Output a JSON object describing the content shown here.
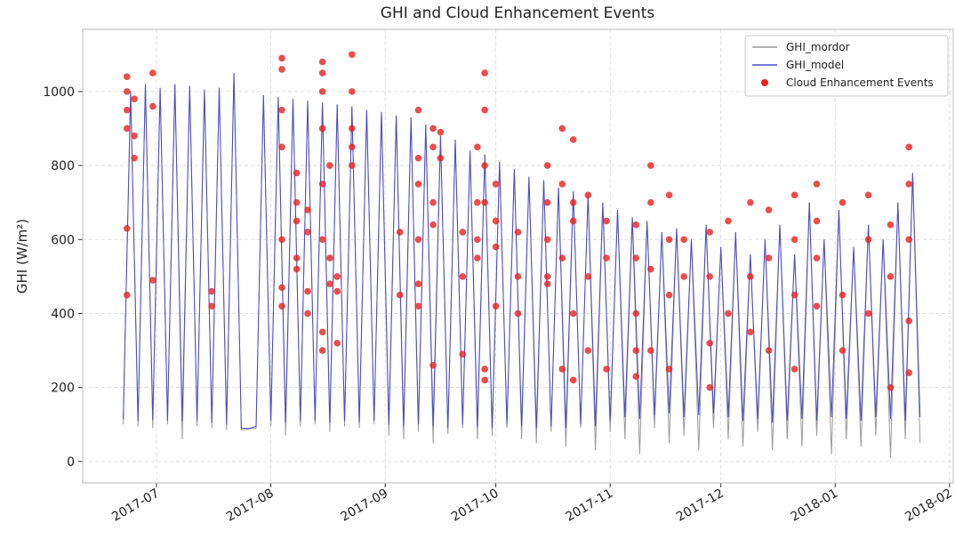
{
  "chart_data": {
    "type": "line",
    "title": "GHI and Cloud Enhancement Events",
    "ylabel": "GHI (W/m²)",
    "xlim": [
      -20,
      216
    ],
    "xticks": [
      {
        "value": 0,
        "label": "2017-07"
      },
      {
        "value": 31,
        "label": "2017-08"
      },
      {
        "value": 62,
        "label": "2017-09"
      },
      {
        "value": 92,
        "label": "2017-10"
      },
      {
        "value": 123,
        "label": "2017-11"
      },
      {
        "value": 153,
        "label": "2017-12"
      },
      {
        "value": 184,
        "label": "2018-01"
      },
      {
        "value": 215,
        "label": "2018-02"
      }
    ],
    "ylim": [
      -58,
      1168
    ],
    "yticks": [
      0,
      200,
      400,
      600,
      800,
      1000
    ],
    "grid": true,
    "legend": "upper right",
    "series": [
      {
        "name": "GHI_mordor",
        "type": "line",
        "color": "#999999",
        "x": [
          -9,
          -7,
          -5,
          -3,
          -1,
          1,
          3,
          5,
          7,
          9,
          11,
          13,
          15,
          17,
          19,
          21,
          23,
          25,
          27,
          29,
          31,
          33,
          35,
          37,
          39,
          41,
          43,
          45,
          47,
          49,
          51,
          53,
          55,
          57,
          59,
          61,
          63,
          65,
          67,
          69,
          71,
          73,
          75,
          77,
          79,
          81,
          83,
          85,
          87,
          89,
          91,
          93,
          95,
          97,
          99,
          101,
          103,
          105,
          107,
          109,
          111,
          113,
          115,
          117,
          119,
          121,
          123,
          125,
          127,
          129,
          131,
          133,
          135,
          137,
          139,
          141,
          143,
          145,
          147,
          149,
          151,
          153,
          155,
          157,
          159,
          161,
          163,
          165,
          167,
          169,
          171,
          173,
          175,
          177,
          179,
          181,
          183,
          185,
          187,
          189,
          191,
          193,
          195,
          197,
          199,
          201,
          203,
          205,
          207
        ],
        "values": [
          100,
          1000,
          95,
          1020,
          90,
          1010,
          100,
          1020,
          60,
          1015,
          95,
          1005,
          90,
          1010,
          85,
          1050,
          85,
          88,
          90,
          990,
          95,
          985,
          70,
          980,
          95,
          975,
          100,
          970,
          80,
          965,
          95,
          960,
          90,
          950,
          100,
          945,
          70,
          935,
          60,
          930,
          80,
          910,
          50,
          880,
          75,
          870,
          90,
          840,
          60,
          830,
          70,
          810,
          90,
          790,
          60,
          770,
          50,
          760,
          80,
          740,
          40,
          730,
          90,
          720,
          30,
          700,
          80,
          680,
          60,
          660,
          20,
          650,
          90,
          620,
          50,
          630,
          70,
          600,
          30,
          640,
          90,
          580,
          60,
          620,
          40,
          560,
          80,
          600,
          30,
          640,
          60,
          560,
          40,
          700,
          70,
          600,
          20,
          680,
          60,
          580,
          40,
          640,
          70,
          600,
          10,
          700,
          60,
          780,
          50
        ]
      },
      {
        "name": "GHI_model",
        "type": "line",
        "color": "#4a4acc",
        "x": [
          -9,
          -7,
          -5,
          -3,
          -1,
          1,
          3,
          5,
          7,
          9,
          11,
          13,
          15,
          17,
          19,
          21,
          23,
          25,
          27,
          29,
          31,
          33,
          35,
          37,
          39,
          41,
          43,
          45,
          47,
          49,
          51,
          53,
          55,
          57,
          59,
          61,
          63,
          65,
          67,
          69,
          71,
          73,
          75,
          77,
          79,
          81,
          83,
          85,
          87,
          89,
          91,
          93,
          95,
          97,
          99,
          101,
          103,
          105,
          107,
          109,
          111,
          113,
          115,
          117,
          119,
          121,
          123,
          125,
          127,
          129,
          131,
          133,
          135,
          137,
          139,
          141,
          143,
          145,
          147,
          149,
          151,
          153,
          155,
          157,
          159,
          161,
          163,
          165,
          167,
          169,
          171,
          173,
          175,
          177,
          179,
          181,
          183,
          185,
          187,
          189,
          191,
          193,
          195,
          197,
          199,
          201,
          203,
          205,
          207
        ],
        "values": [
          115,
          1000,
          110,
          1020,
          112,
          1010,
          110,
          1020,
          108,
          1015,
          110,
          1005,
          105,
          1010,
          100,
          1050,
          90,
          89,
          95,
          990,
          110,
          985,
          105,
          980,
          108,
          975,
          110,
          970,
          105,
          965,
          108,
          960,
          105,
          950,
          110,
          945,
          100,
          935,
          95,
          930,
          100,
          910,
          95,
          880,
          90,
          870,
          100,
          840,
          95,
          830,
          90,
          810,
          100,
          790,
          95,
          770,
          90,
          760,
          95,
          740,
          90,
          730,
          100,
          720,
          95,
          700,
          110,
          680,
          120,
          660,
          115,
          650,
          125,
          620,
          130,
          630,
          120,
          600,
          125,
          640,
          130,
          580,
          120,
          620,
          110,
          560,
          115,
          600,
          105,
          640,
          110,
          560,
          115,
          700,
          110,
          600,
          120,
          680,
          115,
          580,
          110,
          640,
          120,
          600,
          115,
          700,
          110,
          780,
          120
        ]
      },
      {
        "name": "Cloud Enhancement Events",
        "type": "scatter",
        "color": "#e8211d",
        "x": [
          -8,
          -8,
          -8,
          -8,
          -8,
          -8,
          -6,
          -6,
          -6,
          -1,
          -1,
          -1,
          15,
          15,
          34,
          34,
          34,
          34,
          34,
          34,
          34,
          38,
          38,
          38,
          38,
          38,
          41,
          41,
          41,
          41,
          45,
          45,
          45,
          45,
          45,
          45,
          45,
          45,
          47,
          47,
          47,
          49,
          49,
          49,
          53,
          53,
          53,
          53,
          53,
          66,
          66,
          71,
          71,
          71,
          71,
          71,
          71,
          75,
          75,
          75,
          75,
          75,
          77,
          77,
          83,
          83,
          83,
          87,
          87,
          87,
          87,
          89,
          89,
          89,
          89,
          89,
          89,
          92,
          92,
          92,
          92,
          98,
          98,
          98,
          106,
          106,
          106,
          106,
          106,
          110,
          110,
          110,
          110,
          113,
          113,
          113,
          113,
          113,
          117,
          117,
          117,
          122,
          122,
          122,
          130,
          130,
          130,
          130,
          130,
          134,
          134,
          134,
          134,
          139,
          139,
          139,
          139,
          143,
          143,
          150,
          150,
          150,
          150,
          155,
          155,
          161,
          161,
          161,
          166,
          166,
          166,
          173,
          173,
          173,
          173,
          179,
          179,
          179,
          179,
          186,
          186,
          186,
          193,
          193,
          193,
          199,
          199,
          199,
          204,
          204,
          204,
          204,
          204
        ],
        "values": [
          450,
          900,
          950,
          1000,
          1040,
          630,
          820,
          880,
          980,
          490,
          960,
          1050,
          420,
          460,
          600,
          850,
          950,
          1090,
          1060,
          470,
          420,
          780,
          700,
          650,
          550,
          520,
          680,
          620,
          400,
          460,
          750,
          900,
          1000,
          1080,
          1050,
          300,
          350,
          600,
          550,
          480,
          800,
          460,
          500,
          320,
          800,
          850,
          900,
          1000,
          1100,
          450,
          620,
          950,
          820,
          750,
          600,
          480,
          420,
          900,
          850,
          700,
          640,
          260,
          890,
          820,
          620,
          500,
          290,
          850,
          700,
          600,
          550,
          950,
          1050,
          800,
          700,
          250,
          220,
          750,
          650,
          580,
          420,
          620,
          500,
          400,
          800,
          700,
          600,
          500,
          480,
          900,
          750,
          550,
          250,
          870,
          700,
          650,
          400,
          220,
          720,
          500,
          300,
          650,
          550,
          250,
          640,
          550,
          400,
          300,
          230,
          800,
          700,
          520,
          300,
          720,
          600,
          450,
          250,
          600,
          500,
          620,
          500,
          320,
          200,
          650,
          400,
          700,
          500,
          350,
          680,
          550,
          300,
          720,
          600,
          450,
          250,
          750,
          650,
          550,
          420,
          700,
          450,
          300,
          720,
          600,
          400,
          640,
          500,
          200,
          850,
          750,
          600,
          380,
          240
        ]
      }
    ]
  }
}
